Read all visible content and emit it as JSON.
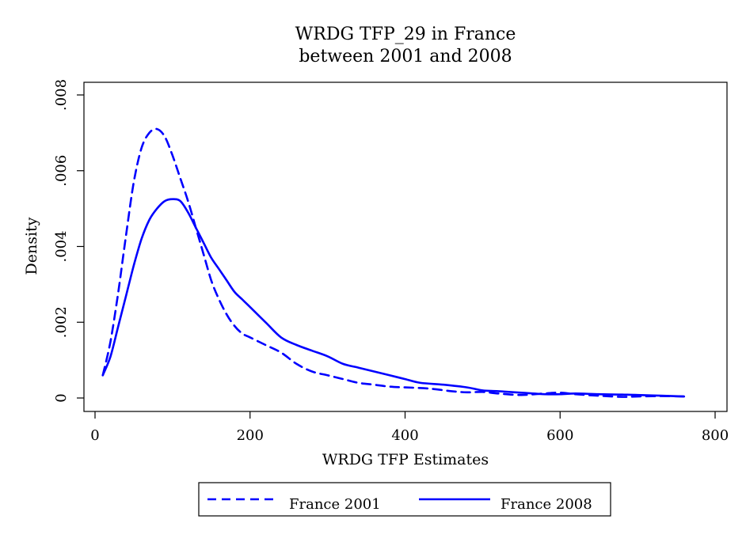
{
  "chart_data": {
    "type": "line",
    "title": "WRDG TFP_29 in France",
    "subtitle": "between 2001 and 2008",
    "xlabel": "WRDG TFP Estimates",
    "ylabel": "Density",
    "xlim": [
      0,
      800
    ],
    "ylim": [
      0,
      0.008
    ],
    "xticks": [
      0,
      200,
      400,
      600,
      800
    ],
    "xtick_labels": [
      "0",
      "200",
      "400",
      "600",
      "800"
    ],
    "yticks": [
      0,
      0.002,
      0.004,
      0.006,
      0.008
    ],
    "ytick_labels": [
      "0",
      ".002",
      ".004",
      ".006",
      ".008"
    ],
    "grid": false,
    "legend_position": "bottom",
    "series": [
      {
        "name": "France 2001",
        "color": "#0000ff",
        "style": "dashed",
        "x": [
          10,
          20,
          30,
          40,
          50,
          60,
          70,
          80,
          90,
          100,
          110,
          120,
          130,
          140,
          150,
          160,
          170,
          180,
          190,
          200,
          220,
          240,
          260,
          280,
          300,
          320,
          340,
          360,
          380,
          400,
          430,
          460,
          480,
          500,
          520,
          550,
          580,
          600,
          620,
          650,
          680,
          700,
          730,
          760
        ],
        "y": [
          0.0006,
          0.0015,
          0.0028,
          0.0043,
          0.0057,
          0.0066,
          0.007,
          0.0071,
          0.0069,
          0.0064,
          0.0058,
          0.0052,
          0.0045,
          0.0038,
          0.0031,
          0.0026,
          0.0022,
          0.0019,
          0.0017,
          0.0016,
          0.0014,
          0.0012,
          0.0009,
          0.0007,
          0.0006,
          0.0005,
          0.0004,
          0.00035,
          0.0003,
          0.00028,
          0.00025,
          0.00018,
          0.00015,
          0.00016,
          0.00012,
          8e-05,
          0.00012,
          0.00014,
          0.0001,
          6e-05,
          3e-05,
          4e-05,
          5e-05,
          4e-05
        ]
      },
      {
        "name": "France 2008",
        "color": "#0000ff",
        "style": "solid",
        "x": [
          10,
          20,
          30,
          40,
          50,
          60,
          70,
          80,
          90,
          100,
          110,
          120,
          130,
          140,
          150,
          160,
          170,
          180,
          190,
          200,
          220,
          240,
          260,
          280,
          300,
          320,
          340,
          360,
          380,
          400,
          420,
          450,
          480,
          500,
          520,
          550,
          580,
          600,
          620,
          650,
          680,
          700,
          730,
          760
        ],
        "y": [
          0.0006,
          0.0011,
          0.0019,
          0.0027,
          0.0035,
          0.0042,
          0.0047,
          0.005,
          0.0052,
          0.00525,
          0.0052,
          0.0049,
          0.0045,
          0.0041,
          0.0037,
          0.0034,
          0.0031,
          0.0028,
          0.0026,
          0.0024,
          0.002,
          0.0016,
          0.0014,
          0.00125,
          0.0011,
          0.0009,
          0.0008,
          0.0007,
          0.0006,
          0.0005,
          0.0004,
          0.00035,
          0.00028,
          0.0002,
          0.00018,
          0.00014,
          0.0001,
          0.0001,
          0.00012,
          0.0001,
          9e-05,
          8e-05,
          6e-05,
          4e-05
        ]
      }
    ]
  }
}
